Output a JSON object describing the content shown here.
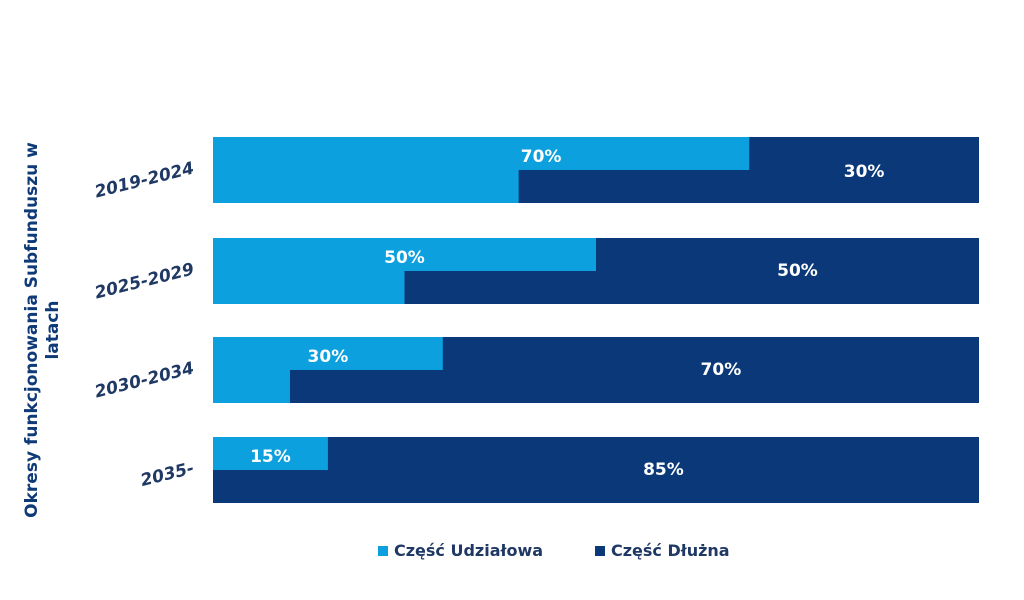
{
  "colors": {
    "equity": "#0ca0de",
    "debt": "#0b3878",
    "axis_text": "#1f3864",
    "ylabel": "#0f3a78"
  },
  "chart_data": {
    "type": "bar",
    "orientation": "horizontal",
    "stacked": true,
    "title": "",
    "xlabel": "",
    "ylabel": "Okresy funkcjonowania Subfunduszu w latach",
    "xlim": [
      0,
      100
    ],
    "grid": false,
    "legend_position": "bottom",
    "categories": [
      "2019-2024",
      "2025-2029",
      "2030-2034",
      "2035-"
    ],
    "series": [
      {
        "name": "Część Udziałowa",
        "values": [
          70,
          50,
          30,
          15
        ],
        "labels": [
          "70%",
          "50%",
          "30%",
          "15%"
        ]
      },
      {
        "name": "Część Dłużna",
        "values": [
          30,
          50,
          70,
          85
        ],
        "labels": [
          "30%",
          "50%",
          "70%",
          "85%"
        ]
      }
    ]
  }
}
